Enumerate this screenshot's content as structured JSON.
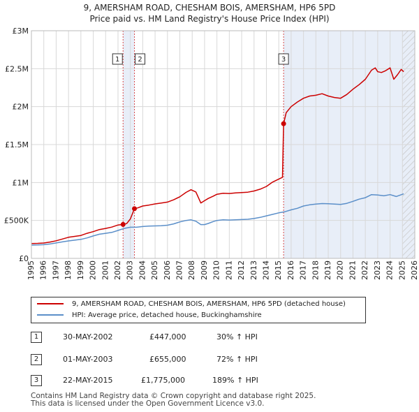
{
  "title_line1": "9, AMERSHAM ROAD, CHESHAM BOIS, AMERSHAM, HP6 5PD",
  "title_line2": "Price paid vs. HM Land Registry's House Price Index (HPI)",
  "colors": {
    "property": "#cc0000",
    "hpi": "#5b8fc9",
    "shade": "#e8eef8",
    "vline": "#cc0000",
    "grid": "#d8d8d8"
  },
  "chart_data": {
    "type": "line",
    "xlim": [
      1995,
      2026
    ],
    "ylim": [
      0,
      3000000
    ],
    "x_ticks": [
      1995,
      1996,
      1997,
      1998,
      1999,
      2000,
      2001,
      2002,
      2003,
      2004,
      2005,
      2006,
      2007,
      2008,
      2009,
      2010,
      2011,
      2012,
      2013,
      2014,
      2015,
      2016,
      2017,
      2018,
      2019,
      2020,
      2021,
      2022,
      2023,
      2024,
      2025,
      2026
    ],
    "y_ticks": [
      {
        "value": 0,
        "label": "£0"
      },
      {
        "value": 500000,
        "label": "£500K"
      },
      {
        "value": 1000000,
        "label": "£1M"
      },
      {
        "value": 1500000,
        "label": "£1.5M"
      },
      {
        "value": 2000000,
        "label": "£2M"
      },
      {
        "value": 2500000,
        "label": "£2.5M"
      },
      {
        "value": 3000000,
        "label": "£3M"
      }
    ],
    "shaded_ranges": [
      [
        2002.41,
        2003.33
      ],
      [
        2015.39,
        2026
      ]
    ],
    "hatched_from": 2025.0,
    "series": [
      {
        "name": "9, AMERSHAM ROAD, CHESHAM BOIS, AMERSHAM, HP6 5PD (detached house)",
        "color": "#cc0000",
        "x": [
          1995.0,
          1995.5,
          1996.0,
          1996.5,
          1997.0,
          1997.5,
          1998.0,
          1998.5,
          1999.0,
          1999.5,
          2000.0,
          2000.5,
          2001.0,
          2001.5,
          2002.0,
          2002.41,
          2002.7,
          2003.0,
          2003.33,
          2003.6,
          2004.0,
          2004.5,
          2005.0,
          2005.5,
          2006.0,
          2006.5,
          2007.0,
          2007.5,
          2007.9,
          2008.3,
          2008.7,
          2009.0,
          2009.3,
          2009.7,
          2010.0,
          2010.5,
          2011.0,
          2011.5,
          2012.0,
          2012.5,
          2013.0,
          2013.5,
          2014.0,
          2014.5,
          2015.0,
          2015.3,
          2015.39,
          2015.6,
          2016.0,
          2016.5,
          2017.0,
          2017.5,
          2018.0,
          2018.5,
          2019.0,
          2019.5,
          2020.0,
          2020.5,
          2021.0,
          2021.5,
          2022.0,
          2022.5,
          2022.8,
          2023.0,
          2023.3,
          2023.6,
          2024.0,
          2024.3,
          2024.6,
          2024.9,
          2025.1
        ],
        "y": [
          195000,
          198000,
          202000,
          215000,
          232000,
          255000,
          278000,
          290000,
          302000,
          330000,
          352000,
          380000,
          395000,
          412000,
          440000,
          447000,
          458000,
          520000,
          655000,
          665000,
          690000,
          702000,
          718000,
          730000,
          742000,
          772000,
          812000,
          870000,
          905000,
          875000,
          730000,
          760000,
          790000,
          820000,
          845000,
          858000,
          855000,
          862000,
          868000,
          872000,
          888000,
          912000,
          948000,
          1005000,
          1045000,
          1068000,
          1775000,
          1920000,
          2000000,
          2060000,
          2110000,
          2140000,
          2150000,
          2170000,
          2140000,
          2120000,
          2110000,
          2160000,
          2230000,
          2290000,
          2360000,
          2480000,
          2510000,
          2460000,
          2450000,
          2470000,
          2510000,
          2360000,
          2420000,
          2490000,
          2460000
        ]
      },
      {
        "name": "HPI: Average price, detached house, Buckinghamshire",
        "color": "#5b8fc9",
        "x": [
          1995.0,
          1995.5,
          1996.0,
          1996.5,
          1997.0,
          1997.5,
          1998.0,
          1998.5,
          1999.0,
          1999.5,
          2000.0,
          2000.5,
          2001.0,
          2001.5,
          2002.0,
          2002.5,
          2003.0,
          2003.5,
          2004.0,
          2004.5,
          2005.0,
          2005.5,
          2006.0,
          2006.5,
          2007.0,
          2007.5,
          2007.9,
          2008.3,
          2008.7,
          2009.0,
          2009.3,
          2009.7,
          2010.0,
          2010.5,
          2011.0,
          2011.5,
          2012.0,
          2012.5,
          2013.0,
          2013.5,
          2014.0,
          2014.5,
          2015.0,
          2015.5,
          2016.0,
          2016.5,
          2017.0,
          2017.5,
          2018.0,
          2018.5,
          2019.0,
          2019.5,
          2020.0,
          2020.5,
          2021.0,
          2021.5,
          2022.0,
          2022.5,
          2023.0,
          2023.5,
          2024.0,
          2024.5,
          2025.0,
          2025.1
        ],
        "y": [
          175000,
          177000,
          180000,
          190000,
          203000,
          217000,
          230000,
          240000,
          250000,
          270000,
          295000,
          318000,
          330000,
          342000,
          368000,
          395000,
          410000,
          410000,
          420000,
          425000,
          428000,
          430000,
          437000,
          455000,
          480000,
          500000,
          508000,
          490000,
          445000,
          445000,
          460000,
          485000,
          500000,
          508000,
          505000,
          508000,
          512000,
          515000,
          525000,
          540000,
          560000,
          580000,
          600000,
          615000,
          640000,
          660000,
          690000,
          706000,
          715000,
          722000,
          720000,
          715000,
          710000,
          725000,
          752000,
          780000,
          800000,
          840000,
          835000,
          825000,
          840000,
          815000,
          845000,
          850000
        ]
      }
    ],
    "sales": [
      {
        "label": "1",
        "x": 2002.41,
        "y": 447000
      },
      {
        "label": "2",
        "x": 2003.33,
        "y": 655000
      },
      {
        "label": "3",
        "x": 2015.39,
        "y": 1775000
      }
    ]
  },
  "legend": {
    "property_label": "9, AMERSHAM ROAD, CHESHAM BOIS, AMERSHAM, HP6 5PD (detached house)",
    "hpi_label": "HPI: Average price, detached house, Buckinghamshire"
  },
  "transactions": [
    {
      "num": "1",
      "date": "30-MAY-2002",
      "price": "£447,000",
      "hpi": "30% ↑ HPI"
    },
    {
      "num": "2",
      "date": "01-MAY-2003",
      "price": "£655,000",
      "hpi": "72% ↑ HPI"
    },
    {
      "num": "3",
      "date": "22-MAY-2015",
      "price": "£1,775,000",
      "hpi": "189% ↑ HPI"
    }
  ],
  "footer": {
    "line1": "Contains HM Land Registry data © Crown copyright and database right 2025.",
    "line2": "This data is licensed under the Open Government Licence v3.0."
  }
}
